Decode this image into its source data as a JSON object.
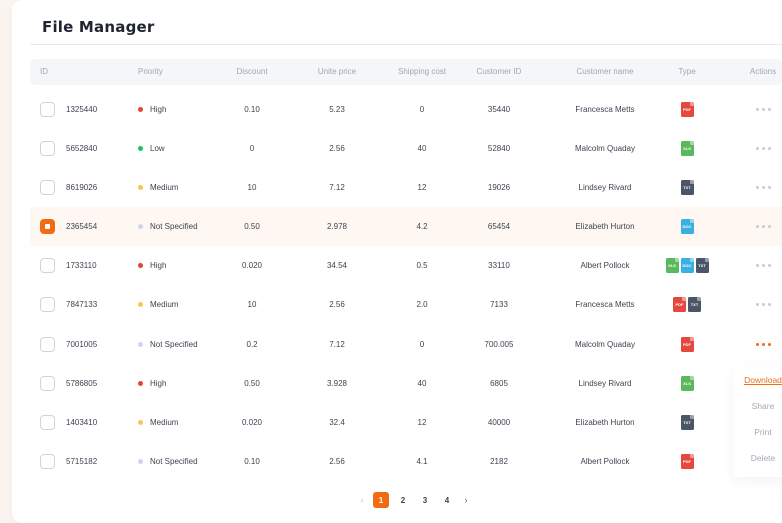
{
  "title": "File Manager",
  "columns": [
    "ID",
    "Priority",
    "Discount",
    "Unite price",
    "Shipping cost",
    "Customer ID",
    "Customer name",
    "Type",
    "Actions"
  ],
  "priority_colors": {
    "High": "#e8423a",
    "Low": "#1fbf63",
    "Medium": "#f2c94c",
    "Not Specified": "#cfd4f2"
  },
  "file_colors": {
    "PDF": "#e5483e",
    "XLS": "#5cb85c",
    "TXT": "#4a5568",
    "DOC": "#3ab0e2"
  },
  "accent": "#f06b12",
  "rows": [
    {
      "id": "1325440",
      "priority": "High",
      "discount": "0.10",
      "price": "5.23",
      "shipping": "0",
      "customer_id": "35440",
      "customer": "Francesca Metts",
      "types": [
        "PDF"
      ],
      "checked": false,
      "actions_active": false
    },
    {
      "id": "5652840",
      "priority": "Low",
      "discount": "0",
      "price": "2.56",
      "shipping": "40",
      "customer_id": "52840",
      "customer": "Malcolm Quaday",
      "types": [
        "XLS"
      ],
      "checked": false,
      "actions_active": false
    },
    {
      "id": "8619026",
      "priority": "Medium",
      "discount": "10",
      "price": "7.12",
      "shipping": "12",
      "customer_id": "19026",
      "customer": "Lindsey Rivard",
      "types": [
        "TXT"
      ],
      "checked": false,
      "actions_active": false
    },
    {
      "id": "2365454",
      "priority": "Not Specified",
      "discount": "0.50",
      "price": "2.978",
      "shipping": "4.2",
      "customer_id": "65454",
      "customer": "Elizabeth Hurton",
      "types": [
        "DOC"
      ],
      "checked": true,
      "actions_active": false
    },
    {
      "id": "1733110",
      "priority": "High",
      "discount": "0.020",
      "price": "34.54",
      "shipping": "0.5",
      "customer_id": "33110",
      "customer": "Albert Pollock",
      "types": [
        "XLS",
        "DOC",
        "TXT"
      ],
      "checked": false,
      "actions_active": false
    },
    {
      "id": "7847133",
      "priority": "Medium",
      "discount": "10",
      "price": "2.56",
      "shipping": "2.0",
      "customer_id": "7133",
      "customer": "Francesca Metts",
      "types": [
        "PDF",
        "TXT"
      ],
      "checked": false,
      "actions_active": false
    },
    {
      "id": "7001005",
      "priority": "Not Specified",
      "discount": "0.2",
      "price": "7.12",
      "shipping": "0",
      "customer_id": "700.005",
      "customer": "Malcolm Quaday",
      "types": [
        "PDF"
      ],
      "checked": false,
      "actions_active": true
    },
    {
      "id": "5786805",
      "priority": "High",
      "discount": "0.50",
      "price": "3.928",
      "shipping": "40",
      "customer_id": "6805",
      "customer": "Lindsey Rivard",
      "types": [
        "XLS"
      ],
      "checked": false,
      "actions_active": false
    },
    {
      "id": "1403410",
      "priority": "Medium",
      "discount": "0.020",
      "price": "32.4",
      "shipping": "12",
      "customer_id": "40000",
      "customer": "Elizabeth Hurton",
      "types": [
        "TXT"
      ],
      "checked": false,
      "actions_active": false
    },
    {
      "id": "5715182",
      "priority": "Not Specified",
      "discount": "0.10",
      "price": "2.56",
      "shipping": "4.1",
      "customer_id": "2182",
      "customer": "Albert Pollock",
      "types": [
        "PDF"
      ],
      "checked": false,
      "actions_active": false
    }
  ],
  "actions_menu": [
    {
      "label": "Download",
      "active": true
    },
    {
      "label": "Share",
      "active": false
    },
    {
      "label": "Print",
      "active": false
    },
    {
      "label": "Delete",
      "active": false
    }
  ],
  "pagination": {
    "prev": "‹",
    "next": "›",
    "pages": [
      "1",
      "2",
      "3",
      "4"
    ],
    "current": "1"
  }
}
